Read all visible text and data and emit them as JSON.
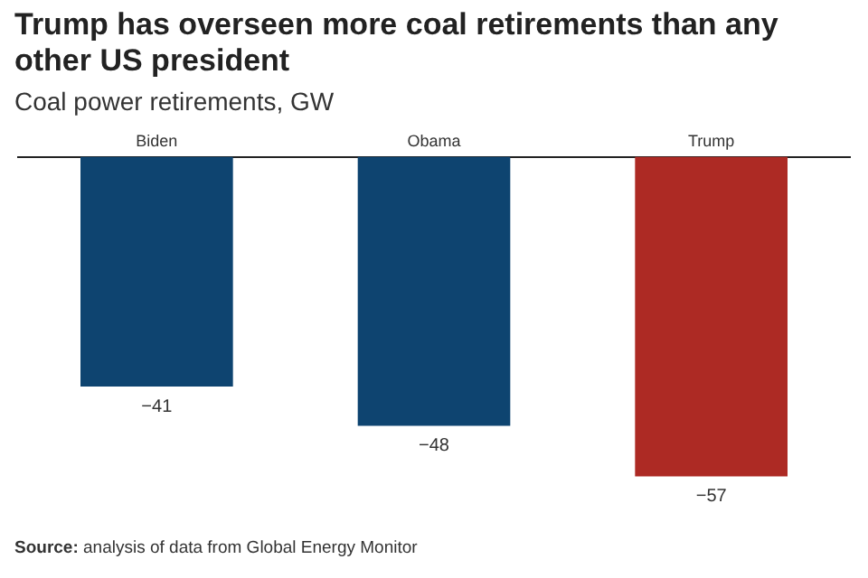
{
  "chart_data": {
    "type": "bar",
    "title": "Trump has overseen more coal retirements than any other US president",
    "subtitle": "Coal power retirements, GW",
    "categories": [
      "Biden",
      "Obama",
      "Trump"
    ],
    "values": [
      -41,
      -48,
      -57
    ],
    "colors": [
      "#0e4470",
      "#0e4470",
      "#ad2a24"
    ],
    "value_labels": [
      "−41",
      "−48",
      "−57"
    ],
    "tick_labels": "x",
    "grid": false,
    "legend": false,
    "annotations": [
      "Source: analysis of data from Global Energy Monitor"
    ]
  }
}
